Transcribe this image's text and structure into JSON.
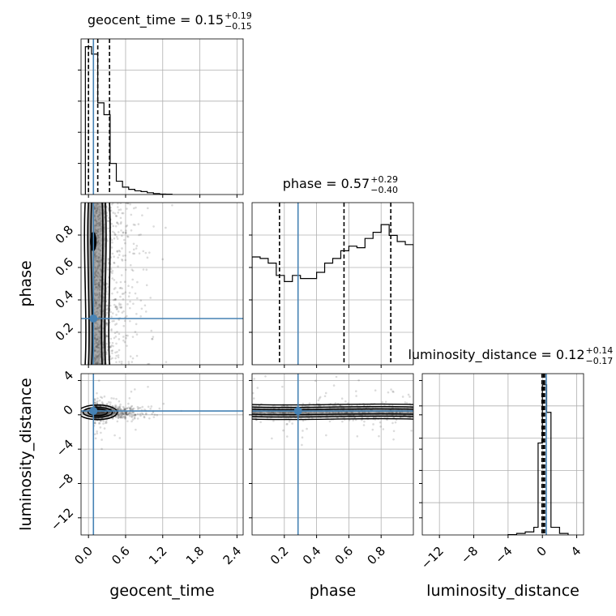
{
  "chart_data": {
    "type": "corner",
    "truth_color": "#4682b4",
    "parameters": [
      {
        "name": "geocent_time",
        "label": "geocent_time",
        "median": "0.15",
        "plus": "+0.19",
        "minus": "−0.15",
        "truth": 0.08,
        "range": [
          -0.12,
          2.5
        ],
        "ticks": [
          0.0,
          0.6,
          1.2,
          1.8,
          2.4
        ],
        "tick_labels": [
          "0.0",
          "0.6",
          "1.2",
          "1.8",
          "2.4"
        ],
        "quantiles": [
          0.0,
          0.15,
          0.34
        ]
      },
      {
        "name": "phase",
        "label": "phase",
        "median": "0.57",
        "plus": "+0.29",
        "minus": "−0.40",
        "truth": 0.285,
        "range": [
          0.0,
          1.0
        ],
        "ticks": [
          0.2,
          0.4,
          0.6,
          0.8
        ],
        "tick_labels": [
          "0.2",
          "0.4",
          "0.6",
          "0.8"
        ],
        "quantiles": [
          0.17,
          0.57,
          0.86
        ]
      },
      {
        "name": "luminosity_distance",
        "label": "luminosity_distance",
        "median": "0.12",
        "plus": "+0.14",
        "minus": "−0.17",
        "truth": 0.45,
        "range": [
          -14.0,
          4.8
        ],
        "ticks": [
          -12,
          -8,
          -4,
          0,
          4
        ],
        "tick_labels": [
          "−12",
          "−8",
          "−4",
          "0",
          "4"
        ],
        "quantiles": [
          -0.05,
          0.12,
          0.26
        ]
      }
    ],
    "histograms": {
      "geocent_time": {
        "bin_edges": [
          -0.05,
          0.05,
          0.15,
          0.25,
          0.35,
          0.45,
          0.55,
          0.65,
          0.75,
          0.85,
          0.95,
          1.05,
          1.15,
          1.25,
          1.35
        ],
        "counts": [
          1.0,
          0.95,
          0.62,
          0.54,
          0.21,
          0.09,
          0.05,
          0.035,
          0.025,
          0.02,
          0.012,
          0.006,
          0.003,
          0.002
        ]
      },
      "phase": {
        "bin_edges": [
          0.0,
          0.05,
          0.1,
          0.15,
          0.2,
          0.25,
          0.3,
          0.35,
          0.4,
          0.45,
          0.5,
          0.55,
          0.6,
          0.65,
          0.7,
          0.75,
          0.8,
          0.85,
          0.9,
          0.95,
          1.0
        ],
        "counts": [
          0.7,
          0.69,
          0.66,
          0.58,
          0.54,
          0.58,
          0.56,
          0.56,
          0.6,
          0.66,
          0.69,
          0.74,
          0.77,
          0.76,
          0.82,
          0.86,
          0.91,
          0.84,
          0.8,
          0.78
        ]
      },
      "luminosity_distance": {
        "bin_edges": [
          -4,
          -3,
          -2,
          -1,
          -0.5,
          0.0,
          0.5,
          1,
          2,
          3
        ],
        "counts": [
          0.002,
          0.01,
          0.02,
          0.05,
          0.6,
          0.98,
          0.8,
          0.05,
          0.01
        ]
      }
    },
    "scatter_2d": {
      "phase_vs_geocent_time": {
        "x_center": 0.12,
        "x_spread": 0.25,
        "y_range": [
          0.0,
          1.0
        ],
        "truth": [
          0.08,
          0.285
        ]
      },
      "luminosity_distance_vs_geocent_time": {
        "x_center": 0.12,
        "x_spread": 0.25,
        "y_center": 0.3,
        "y_spread": 0.4,
        "truth": [
          0.08,
          0.45
        ]
      },
      "luminosity_distance_vs_phase": {
        "x_range": [
          0.0,
          1.0
        ],
        "y_center": 0.35,
        "y_spread": 0.4,
        "truth": [
          0.285,
          0.45
        ]
      }
    },
    "grid": true
  }
}
